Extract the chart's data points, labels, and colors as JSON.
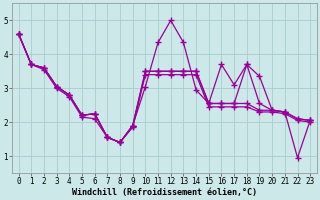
{
  "background_color": "#cce8e8",
  "grid_color": "#aacccc",
  "line_color": "#990099",
  "marker": "+",
  "marker_size": 4,
  "linewidth": 0.9,
  "marker_linewidth": 1.0,
  "xlabel": "Windchill (Refroidissement éolien,°C)",
  "xlabel_fontsize": 6.0,
  "tick_fontsize": 5.5,
  "xlim": [
    -0.5,
    23.5
  ],
  "ylim": [
    0.5,
    5.5
  ],
  "yticks": [
    1,
    2,
    3,
    4,
    5
  ],
  "xticks": [
    0,
    1,
    2,
    3,
    4,
    5,
    6,
    7,
    8,
    9,
    10,
    11,
    12,
    13,
    14,
    15,
    16,
    17,
    18,
    19,
    20,
    21,
    22,
    23
  ],
  "series": [
    {
      "x": [
        0,
        1,
        2,
        3,
        4,
        5,
        6,
        7,
        8,
        9,
        10,
        11,
        12,
        13,
        14,
        15,
        16,
        17,
        18,
        19,
        20,
        21,
        22,
        23
      ],
      "y": [
        4.6,
        3.7,
        3.6,
        3.05,
        2.8,
        2.2,
        2.25,
        1.55,
        1.4,
        1.9,
        3.05,
        4.35,
        5.0,
        4.35,
        2.95,
        2.55,
        2.55,
        2.55,
        3.7,
        3.35,
        2.35,
        2.3,
        2.1,
        2.05
      ]
    },
    {
      "x": [
        0,
        1,
        2,
        3,
        4,
        5,
        6,
        7,
        8,
        9,
        10,
        11,
        12,
        13,
        14,
        15,
        16,
        17,
        18,
        19,
        20,
        21,
        22,
        23
      ],
      "y": [
        4.6,
        3.7,
        3.6,
        3.05,
        2.8,
        2.2,
        2.25,
        1.55,
        1.4,
        1.9,
        3.5,
        3.5,
        3.5,
        3.5,
        3.5,
        2.55,
        3.7,
        3.1,
        3.7,
        2.55,
        2.35,
        2.3,
        2.1,
        2.05
      ]
    },
    {
      "x": [
        0,
        1,
        2,
        3,
        4,
        5,
        6,
        7,
        8,
        9,
        10,
        11,
        12,
        13,
        14,
        15,
        16,
        17,
        18,
        19,
        20,
        21,
        22,
        23
      ],
      "y": [
        4.6,
        3.7,
        3.6,
        3.05,
        2.8,
        2.2,
        2.25,
        1.55,
        1.4,
        1.9,
        3.5,
        3.5,
        3.5,
        3.5,
        3.5,
        2.55,
        2.55,
        2.55,
        2.55,
        2.35,
        2.35,
        2.3,
        0.95,
        2.05
      ]
    },
    {
      "x": [
        0,
        1,
        2,
        3,
        4,
        5,
        6,
        7,
        8,
        9,
        10,
        11,
        12,
        13,
        14,
        15,
        16,
        17,
        18,
        19,
        20,
        21,
        22,
        23
      ],
      "y": [
        4.6,
        3.7,
        3.55,
        3.0,
        2.75,
        2.15,
        2.1,
        1.55,
        1.4,
        1.85,
        3.4,
        3.4,
        3.4,
        3.4,
        3.4,
        2.45,
        2.45,
        2.45,
        2.45,
        2.3,
        2.3,
        2.25,
        2.05,
        2.0
      ]
    }
  ]
}
